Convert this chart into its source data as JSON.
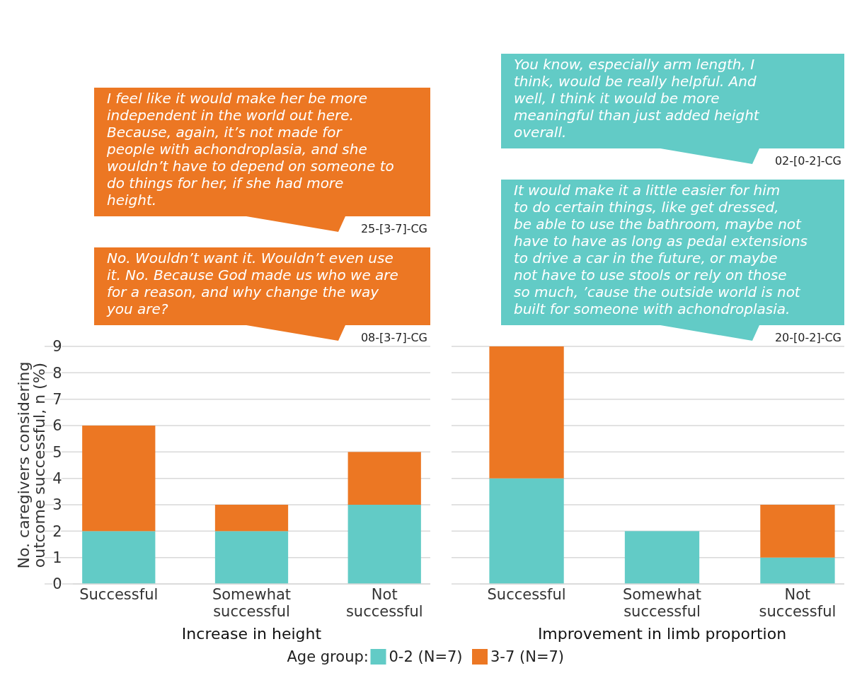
{
  "chart_data": [
    {
      "type": "bar",
      "stacked": true,
      "xlabel": "Increase in height",
      "ylabel": "No. caregivers considering outcome successful, n (%)",
      "categories": [
        "Successful",
        "Somewhat successful",
        "Not successful"
      ],
      "ylim": [
        0,
        9
      ],
      "yticks": [
        0,
        1,
        2,
        3,
        4,
        5,
        6,
        7,
        8,
        9
      ],
      "grid": "y",
      "legend": "bottom",
      "legend_title": "Age group:",
      "series": [
        {
          "name": "0-2 (N=7)",
          "color": "#62cbc6",
          "values": [
            2,
            2,
            3
          ]
        },
        {
          "name": "3-7 (N=7)",
          "color": "#ec7723",
          "values": [
            4,
            1,
            2
          ]
        }
      ],
      "annotations": [
        "I feel like it would make her be more independent in the world out here. Because, again, it’s not made for people with achondroplasia, and she wouldn’t have to depend on someone to do things for her, if she had more height.",
        "25-[3-7]-CG",
        "No. Wouldn’t want it. Wouldn’t even use it. No. Because God made us who we are for a reason, and why change the way you are?",
        "08-[3-7]-CG"
      ]
    },
    {
      "type": "bar",
      "stacked": true,
      "xlabel": "Improvement in limb proportion",
      "categories": [
        "Successful",
        "Somewhat successful",
        "Not successful"
      ],
      "ylim": [
        0,
        9
      ],
      "yticks": [
        0,
        1,
        2,
        3,
        4,
        5,
        6,
        7,
        8,
        9
      ],
      "grid": "y",
      "tick_labels": "x",
      "series": [
        {
          "color": "#62cbc6",
          "values": [
            4,
            2,
            1
          ]
        },
        {
          "color": "#ec7723",
          "values": [
            5,
            0,
            2
          ]
        }
      ],
      "annotations": [
        "You know, especially arm length, I think, would be really helpful. And well, I think it would be more meaningful than just added height overall.",
        "02-[0-2]-CG",
        "It would make it a little easier for him to do certain things, like get dressed, be able to use the bathroom, maybe not have to have as long as pedal extensions to drive a car in the future, or maybe not have to use stools or rely on those so much, ’cause the outside world is not built for someone with achondroplasia.",
        "20-[0-2]-CG"
      ]
    }
  ]
}
